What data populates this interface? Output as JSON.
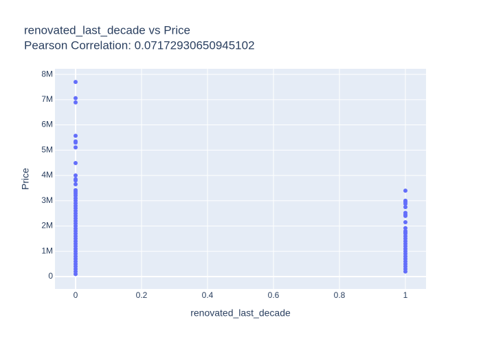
{
  "chart_data": {
    "type": "scatter",
    "title": "renovated_last_decade vs Price",
    "subtitle": "Pearson Correlation: 0.07172930650945102",
    "xlabel": "renovated_last_decade",
    "ylabel": "Price",
    "color": "#636efa",
    "grid": true,
    "xlim": [
      -0.0625,
      1.0625
    ],
    "ylim": [
      -490000,
      8220000
    ],
    "xticks": [
      0,
      0.2,
      0.4,
      0.6,
      0.8,
      1
    ],
    "yticks": [
      0,
      {
        "value": 1000000,
        "label": "1M"
      },
      {
        "value": 2000000,
        "label": "2M"
      },
      {
        "value": 3000000,
        "label": "3M"
      },
      {
        "value": 4000000,
        "label": "4M"
      },
      {
        "value": 5000000,
        "label": "5M"
      },
      {
        "value": 6000000,
        "label": "6M"
      },
      {
        "value": 7000000,
        "label": "7M"
      },
      {
        "value": 8000000,
        "label": "8M"
      }
    ],
    "x": [
      0,
      0,
      0,
      0,
      0,
      0,
      0,
      0,
      0,
      0,
      0,
      0,
      0,
      0,
      0,
      0,
      0,
      0,
      0,
      0,
      0,
      0,
      0,
      0,
      0,
      0,
      0,
      0,
      0,
      0,
      0,
      0,
      0,
      0,
      0,
      0,
      0,
      0,
      0,
      0,
      0,
      0,
      0,
      0,
      0,
      0,
      0,
      1,
      1,
      1,
      1,
      1,
      1,
      1,
      1,
      1,
      1,
      1,
      1,
      1,
      1,
      1,
      1,
      1,
      1,
      1,
      1,
      1,
      1,
      1,
      1,
      1,
      1,
      1,
      1
    ],
    "y": [
      7700000,
      7060000,
      6890000,
      5570000,
      5350000,
      5300000,
      5110000,
      4490000,
      4000000,
      3850000,
      3800000,
      3650000,
      3420000,
      3350000,
      3280000,
      3200000,
      3100000,
      3000000,
      2900000,
      2800000,
      2700000,
      2600000,
      2500000,
      2400000,
      2300000,
      2200000,
      2100000,
      2000000,
      1900000,
      1800000,
      1700000,
      1600000,
      1500000,
      1400000,
      1300000,
      1200000,
      1100000,
      1000000,
      900000,
      800000,
      700000,
      600000,
      500000,
      400000,
      300000,
      200000,
      100000,
      3400000,
      3000000,
      2950000,
      2880000,
      2750000,
      2520000,
      2450000,
      2400000,
      2150000,
      1920000,
      1800000,
      1750000,
      1700000,
      1600000,
      1500000,
      1400000,
      1300000,
      1200000,
      1100000,
      1000000,
      900000,
      800000,
      700000,
      600000,
      500000,
      400000,
      300000,
      200000
    ]
  }
}
